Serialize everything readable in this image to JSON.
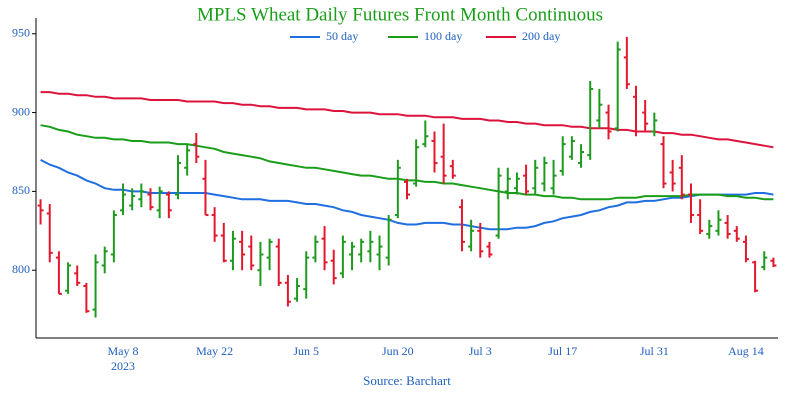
{
  "chart_data": {
    "type": "ohlc",
    "title": "MPLS Wheat Daily Futures Front Month Continuous",
    "source": "Source: Barchart",
    "x_year": "2023",
    "categories": [
      null,
      null,
      null,
      null,
      null,
      null,
      null,
      null,
      null,
      "May 8",
      null,
      null,
      null,
      null,
      null,
      null,
      null,
      null,
      null,
      "May 22",
      null,
      null,
      null,
      null,
      null,
      null,
      null,
      null,
      null,
      "Jun 5",
      null,
      null,
      null,
      null,
      null,
      null,
      null,
      null,
      null,
      "Jun 20",
      null,
      null,
      null,
      null,
      null,
      null,
      null,
      null,
      "Jul 3",
      null,
      null,
      null,
      null,
      null,
      null,
      null,
      null,
      "Jul 17",
      null,
      null,
      null,
      null,
      null,
      null,
      null,
      null,
      null,
      "Jul 31",
      null,
      null,
      null,
      null,
      null,
      null,
      null,
      null,
      null,
      "Aug 14",
      null,
      null,
      null
    ],
    "open": [
      841,
      836,
      808,
      787,
      798,
      790,
      775,
      803,
      810,
      838,
      841,
      845,
      848,
      838,
      848,
      848,
      865,
      880,
      858,
      835,
      822,
      806,
      818,
      815,
      800,
      808,
      815,
      792,
      782,
      788,
      808,
      820,
      806,
      798,
      810,
      810,
      812,
      810,
      808,
      835,
      856,
      855,
      880,
      882,
      872,
      866,
      840,
      815,
      825,
      815,
      822,
      850,
      852,
      860,
      852,
      855,
      852,
      863,
      872,
      868,
      873,
      895,
      900,
      890,
      935,
      910,
      900,
      888,
      880,
      862,
      865,
      848,
      835,
      823,
      825,
      830,
      825,
      818,
      805,
      802,
      806
    ],
    "high": [
      845,
      842,
      812,
      805,
      803,
      792,
      810,
      815,
      838,
      855,
      852,
      855,
      852,
      853,
      850,
      873,
      880,
      887,
      870,
      840,
      830,
      825,
      825,
      822,
      818,
      820,
      820,
      797,
      795,
      812,
      822,
      828,
      813,
      822,
      818,
      820,
      825,
      822,
      835,
      870,
      858,
      883,
      895,
      888,
      893,
      870,
      845,
      832,
      830,
      818,
      865,
      865,
      862,
      867,
      870,
      872,
      870,
      885,
      885,
      880,
      920,
      915,
      905,
      945,
      948,
      917,
      908,
      900,
      885,
      870,
      873,
      855,
      845,
      832,
      838,
      835,
      828,
      822,
      806,
      812,
      808
    ],
    "low": [
      829,
      805,
      785,
      785,
      790,
      773,
      770,
      798,
      805,
      835,
      838,
      840,
      838,
      833,
      833,
      845,
      860,
      868,
      835,
      818,
      805,
      800,
      800,
      800,
      790,
      800,
      790,
      777,
      780,
      782,
      805,
      800,
      791,
      795,
      800,
      805,
      805,
      800,
      803,
      833,
      845,
      853,
      878,
      862,
      855,
      858,
      812,
      812,
      808,
      808,
      820,
      845,
      848,
      848,
      848,
      850,
      848,
      860,
      870,
      865,
      870,
      890,
      883,
      888,
      915,
      885,
      888,
      885,
      852,
      850,
      845,
      830,
      823,
      820,
      822,
      820,
      818,
      805,
      786,
      800,
      802
    ],
    "close": [
      838,
      811,
      785,
      803,
      792,
      774,
      805,
      812,
      835,
      848,
      847,
      850,
      840,
      850,
      838,
      868,
      876,
      872,
      835,
      822,
      806,
      820,
      810,
      803,
      810,
      818,
      792,
      780,
      790,
      808,
      818,
      805,
      795,
      818,
      815,
      818,
      818,
      815,
      832,
      865,
      848,
      878,
      885,
      868,
      860,
      860,
      818,
      825,
      812,
      810,
      860,
      858,
      858,
      850,
      865,
      868,
      860,
      880,
      882,
      875,
      915,
      905,
      888,
      940,
      918,
      888,
      893,
      895,
      855,
      855,
      848,
      835,
      825,
      828,
      832,
      823,
      820,
      807,
      787,
      808,
      803
    ],
    "up_color": "#1e9a1e",
    "down_color": "#e3182d",
    "series": [
      {
        "name": "50 day",
        "color": "#1f6fe0",
        "values": [
          870,
          867,
          865,
          862,
          860,
          857,
          855,
          852,
          851,
          851,
          850,
          850,
          849,
          849,
          849,
          849,
          849,
          849,
          849,
          848,
          847,
          846,
          845,
          845,
          845,
          844,
          844,
          844,
          843,
          842,
          842,
          841,
          840,
          838,
          837,
          835,
          834,
          833,
          832,
          830,
          829,
          829,
          830,
          830,
          830,
          829,
          829,
          828,
          827,
          826,
          826,
          826,
          827,
          827,
          828,
          830,
          831,
          833,
          834,
          835,
          837,
          838,
          840,
          841,
          843,
          843,
          844,
          844,
          845,
          846,
          846,
          847,
          848,
          848,
          848,
          848,
          848,
          848,
          849,
          849,
          848
        ]
      },
      {
        "name": "100 day",
        "color": "#1a9e1a",
        "values": [
          892,
          891,
          889,
          888,
          886,
          885,
          884,
          884,
          883,
          883,
          882,
          882,
          881,
          881,
          881,
          880,
          880,
          879,
          878,
          877,
          875,
          874,
          873,
          872,
          871,
          869,
          868,
          867,
          866,
          865,
          865,
          864,
          863,
          862,
          861,
          860,
          860,
          859,
          858,
          858,
          857,
          857,
          856,
          856,
          855,
          855,
          854,
          853,
          852,
          851,
          850,
          849,
          849,
          848,
          848,
          847,
          847,
          846,
          846,
          845,
          845,
          845,
          845,
          846,
          846,
          846,
          847,
          847,
          847,
          847,
          847,
          848,
          848,
          848,
          848,
          847,
          847,
          846,
          846,
          845,
          845
        ]
      },
      {
        "name": "200 day",
        "color": "#dc143c",
        "values": [
          913,
          913,
          912,
          912,
          911,
          911,
          910,
          910,
          909,
          909,
          909,
          909,
          908,
          908,
          908,
          908,
          907,
          907,
          907,
          907,
          906,
          906,
          905,
          905,
          904,
          904,
          903,
          903,
          903,
          902,
          902,
          902,
          901,
          901,
          900,
          900,
          900,
          899,
          899,
          899,
          898,
          898,
          898,
          897,
          897,
          897,
          896,
          896,
          896,
          895,
          895,
          894,
          894,
          893,
          893,
          892,
          892,
          892,
          891,
          891,
          890,
          890,
          890,
          889,
          889,
          888,
          888,
          888,
          887,
          887,
          886,
          886,
          885,
          884,
          883,
          883,
          882,
          881,
          880,
          879,
          878
        ]
      }
    ],
    "ylim": [
      757,
      960
    ],
    "yticks": [
      800,
      850,
      900,
      950
    ]
  }
}
